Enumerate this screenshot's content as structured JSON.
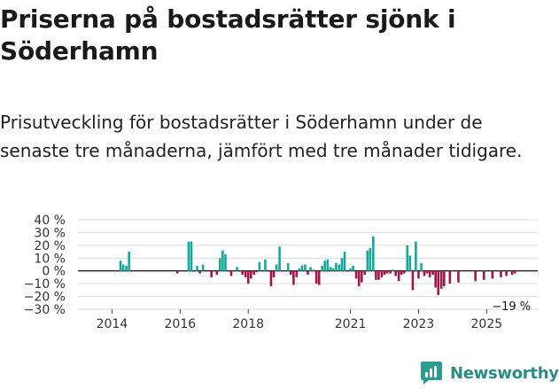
{
  "header": {
    "title": "Priserna på bostadsrätter sjönk i Söderhamn",
    "subtitle": "Prisutveckling för bostadsrätter i Söderhamn under de senaste tre månaderna, jämfört med tre månader tidigare."
  },
  "brand": {
    "name": "Newsworthy"
  },
  "colors": {
    "positive": "#16a89a",
    "negative": "#a3164a",
    "grid": "#d9d9d9",
    "zero": "#222222"
  },
  "chart_data": {
    "type": "bar",
    "title": "Priserna på bostadsrätter sjönk i Söderhamn",
    "xlabel": "",
    "ylabel": "",
    "ylim": [
      -30,
      40
    ],
    "y_ticks": [
      40,
      30,
      20,
      10,
      0,
      -10,
      -20,
      -30
    ],
    "y_tick_labels": [
      "40 %",
      "30 %",
      "20 %",
      "10 %",
      "0 %",
      "−10 %",
      "−20 %",
      "−30 %"
    ],
    "x_range": [
      2013.0,
      2026.5
    ],
    "x_ticks": [
      2014,
      2016,
      2018,
      2021,
      2023,
      2025
    ],
    "x_tick_labels": [
      "2014",
      "2016",
      "2018",
      "2021",
      "2023",
      "2025"
    ],
    "annotation": "−19 %",
    "x": [
      2014.25,
      2014.33,
      2014.42,
      2014.5,
      2015.92,
      2016.25,
      2016.33,
      2016.5,
      2016.58,
      2016.67,
      2016.92,
      2017.08,
      2017.17,
      2017.25,
      2017.33,
      2017.5,
      2017.67,
      2017.83,
      2017.92,
      2018.0,
      2018.08,
      2018.17,
      2018.25,
      2018.33,
      2018.5,
      2018.67,
      2018.75,
      2018.83,
      2018.92,
      2019.17,
      2019.25,
      2019.33,
      2019.42,
      2019.5,
      2019.58,
      2019.67,
      2019.75,
      2019.83,
      2019.92,
      2020.0,
      2020.08,
      2020.17,
      2020.25,
      2020.33,
      2020.42,
      2020.5,
      2020.58,
      2020.67,
      2020.75,
      2020.83,
      2021.0,
      2021.08,
      2021.17,
      2021.25,
      2021.33,
      2021.42,
      2021.5,
      2021.58,
      2021.67,
      2021.75,
      2021.83,
      2021.92,
      2022.0,
      2022.08,
      2022.17,
      2022.25,
      2022.33,
      2022.42,
      2022.5,
      2022.58,
      2022.67,
      2022.75,
      2022.83,
      2022.92,
      2023.0,
      2023.08,
      2023.17,
      2023.25,
      2023.33,
      2023.42,
      2023.5,
      2023.58,
      2023.67,
      2023.75,
      2023.92,
      2024.17,
      2024.67,
      2024.92,
      2025.17,
      2025.42,
      2025.58,
      2025.75,
      2025.83
    ],
    "values": [
      8,
      5,
      4,
      15,
      -2,
      23,
      23,
      4,
      -2,
      5,
      -5,
      -3,
      10,
      16,
      13,
      -4,
      3,
      -3,
      -5,
      -10,
      -6,
      -3,
      -1,
      7,
      9,
      -12,
      -5,
      5,
      19,
      6,
      -3,
      -11,
      -5,
      2,
      4,
      5,
      -3,
      3,
      1,
      -10,
      -11,
      4,
      8,
      9,
      3,
      2,
      6,
      5,
      10,
      15,
      2,
      4,
      -6,
      -12,
      -9,
      -3,
      16,
      18,
      27,
      -7,
      -7,
      -5,
      -3,
      -2,
      -2,
      1,
      -4,
      -8,
      -3,
      -2,
      20,
      12,
      -15,
      23,
      -6,
      6,
      -4,
      -2,
      -5,
      -3,
      -13,
      -19,
      -14,
      -12,
      -10,
      -9,
      -8,
      -7,
      -6,
      -5,
      -4,
      -3,
      -2
    ],
    "unused_note": ""
  }
}
